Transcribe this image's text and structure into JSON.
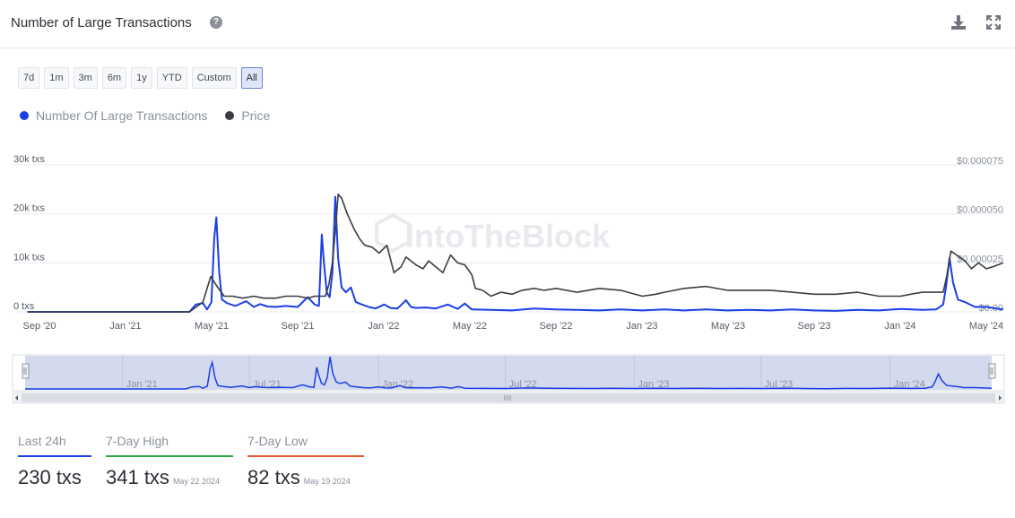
{
  "header": {
    "title": "Number of Large Transactions",
    "help_icon": "question-circle-icon",
    "download_icon": "download-icon",
    "expand_icon": "fullscreen-icon"
  },
  "ranges": [
    "7d",
    "1m",
    "3m",
    "6m",
    "1y",
    "YTD",
    "Custom",
    "All"
  ],
  "active_range": "All",
  "legend": [
    {
      "label": "Number Of Large Transactions",
      "color": "#1a3ee8"
    },
    {
      "label": "Price",
      "color": "#3a3d44"
    }
  ],
  "watermark": "IntoTheBlock",
  "chart_data": {
    "type": "line",
    "x_ticks": [
      "Sep '20",
      "Jan '21",
      "May '21",
      "Sep '21",
      "Jan '22",
      "May '22",
      "Sep '22",
      "Jan '23",
      "May '23",
      "Sep '23",
      "Jan '24",
      "May '24"
    ],
    "y_left_ticks": [
      "0 txs",
      "10k txs",
      "20k txs",
      "30k txs"
    ],
    "y_right_ticks": [
      "$0.00",
      "$0.000025",
      "$0.000050",
      "$0.000075"
    ],
    "y_left_range": [
      0,
      30000
    ],
    "y_right_range": [
      0,
      7.5e-05
    ],
    "navigator_ticks": [
      "Jan '21",
      "Jul '21",
      "Jan '22",
      "Jul '22",
      "Jan '23",
      "Jul '23",
      "Jan '24"
    ],
    "series": [
      {
        "name": "Number Of Large Transactions",
        "color": "#1a3ee8",
        "axis": "left",
        "x": [
          "2020-08-15",
          "2020-10-01",
          "2020-12-01",
          "2021-02-01",
          "2021-04-01",
          "2021-04-10",
          "2021-04-20",
          "2021-04-26",
          "2021-05-02",
          "2021-05-06",
          "2021-05-09",
          "2021-05-13",
          "2021-05-17",
          "2021-05-24",
          "2021-06-05",
          "2021-06-20",
          "2021-07-01",
          "2021-07-10",
          "2021-07-20",
          "2021-08-01",
          "2021-08-15",
          "2021-09-01",
          "2021-09-15",
          "2021-09-25",
          "2021-10-01",
          "2021-10-05",
          "2021-10-08",
          "2021-10-12",
          "2021-10-16",
          "2021-10-20",
          "2021-10-24",
          "2021-10-28",
          "2021-11-02",
          "2021-11-08",
          "2021-11-15",
          "2021-11-22",
          "2021-12-01",
          "2021-12-10",
          "2021-12-20",
          "2022-01-01",
          "2022-01-10",
          "2022-01-20",
          "2022-02-01",
          "2022-02-08",
          "2022-02-15",
          "2022-03-01",
          "2022-03-15",
          "2022-04-01",
          "2022-04-15",
          "2022-04-25",
          "2022-05-05",
          "2022-06-01",
          "2022-07-01",
          "2022-08-01",
          "2022-09-01",
          "2022-10-01",
          "2022-11-01",
          "2022-12-01",
          "2023-01-01",
          "2023-02-01",
          "2023-03-01",
          "2023-04-01",
          "2023-05-01",
          "2023-06-01",
          "2023-07-01",
          "2023-08-01",
          "2023-09-01",
          "2023-10-01",
          "2023-11-01",
          "2023-12-01",
          "2024-01-01",
          "2024-02-01",
          "2024-02-20",
          "2024-03-01",
          "2024-03-05",
          "2024-03-10",
          "2024-03-15",
          "2024-03-22",
          "2024-04-01",
          "2024-04-15",
          "2024-05-01",
          "2024-05-15",
          "2024-05-25"
        ],
        "y": [
          0,
          0,
          0,
          0,
          0,
          1500,
          1800,
          500,
          2000,
          15000,
          19300,
          8000,
          2500,
          1800,
          1200,
          2200,
          1000,
          1600,
          1100,
          1000,
          1200,
          1000,
          3000,
          1500,
          1200,
          15800,
          10000,
          4000,
          3000,
          8000,
          23500,
          11000,
          5000,
          4000,
          5000,
          2000,
          1500,
          1000,
          700,
          1500,
          800,
          700,
          2400,
          1000,
          800,
          900,
          700,
          1500,
          600,
          1700,
          500,
          400,
          300,
          700,
          500,
          400,
          300,
          500,
          300,
          500,
          300,
          500,
          300,
          400,
          300,
          500,
          300,
          200,
          400,
          300,
          600,
          400,
          500,
          1500,
          5000,
          11000,
          6000,
          2500,
          2000,
          1000,
          1000,
          700,
          500
        ]
      },
      {
        "name": "Price",
        "color": "#3a3d44",
        "axis": "right",
        "x": [
          "2020-08-15",
          "2021-04-01",
          "2021-04-20",
          "2021-05-01",
          "2021-05-10",
          "2021-05-20",
          "2021-06-01",
          "2021-06-15",
          "2021-07-01",
          "2021-07-15",
          "2021-08-01",
          "2021-08-15",
          "2021-09-01",
          "2021-09-15",
          "2021-09-25",
          "2021-10-01",
          "2021-10-10",
          "2021-10-15",
          "2021-10-20",
          "2021-10-25",
          "2021-10-28",
          "2021-11-02",
          "2021-11-10",
          "2021-11-20",
          "2021-11-28",
          "2021-12-05",
          "2021-12-15",
          "2021-12-25",
          "2022-01-05",
          "2022-01-15",
          "2022-01-25",
          "2022-02-01",
          "2022-02-08",
          "2022-02-15",
          "2022-02-25",
          "2022-03-05",
          "2022-03-15",
          "2022-03-25",
          "2022-04-05",
          "2022-04-15",
          "2022-04-25",
          "2022-05-05",
          "2022-05-10",
          "2022-05-20",
          "2022-06-01",
          "2022-06-15",
          "2022-07-01",
          "2022-07-15",
          "2022-08-01",
          "2022-08-15",
          "2022-09-01",
          "2022-10-01",
          "2022-11-01",
          "2022-12-01",
          "2023-01-01",
          "2023-01-20",
          "2023-02-01",
          "2023-03-01",
          "2023-04-01",
          "2023-05-01",
          "2023-06-01",
          "2023-07-01",
          "2023-08-01",
          "2023-09-01",
          "2023-10-01",
          "2023-11-01",
          "2023-12-01",
          "2024-01-01",
          "2024-01-15",
          "2024-02-01",
          "2024-02-20",
          "2024-03-01",
          "2024-03-06",
          "2024-03-12",
          "2024-03-20",
          "2024-04-01",
          "2024-04-10",
          "2024-04-20",
          "2024-05-01",
          "2024-05-10",
          "2024-05-25"
        ],
        "y": [
          0,
          0,
          5e-06,
          1.8e-05,
          1.3e-05,
          8e-06,
          8e-06,
          7e-06,
          8e-06,
          7e-06,
          7e-06,
          8e-06,
          8e-06,
          7e-06,
          8e-06,
          8e-06,
          8e-06,
          1.4e-05,
          2.5e-05,
          4.5e-05,
          6e-05,
          5.8e-05,
          5e-05,
          4.2e-05,
          3.7e-05,
          3.4e-05,
          3.3e-05,
          3e-05,
          3.4e-05,
          2e-05,
          2.3e-05,
          2.8e-05,
          2.6e-05,
          2.4e-05,
          2.2e-05,
          2.6e-05,
          2.3e-05,
          2e-05,
          2.9e-05,
          2.5e-05,
          2.4e-05,
          1.9e-05,
          1.2e-05,
          1.1e-05,
          8e-06,
          1e-05,
          9e-06,
          1.1e-05,
          1.2e-05,
          1.1e-05,
          1.2e-05,
          1e-05,
          1.2e-05,
          1.1e-05,
          8e-06,
          9e-06,
          1e-05,
          1.2e-05,
          1.3e-05,
          1.1e-05,
          1.1e-05,
          1.1e-05,
          1e-05,
          9e-06,
          9e-06,
          1e-05,
          8e-06,
          8e-06,
          9e-06,
          1e-05,
          1e-05,
          1e-05,
          1.8e-05,
          3.1e-05,
          2.9e-05,
          2.6e-05,
          2.2e-05,
          2.5e-05,
          2.2e-05,
          2.3e-05,
          2.5e-05
        ]
      }
    ]
  },
  "stats": [
    {
      "label": "Last 24h",
      "value": "230 txs",
      "date": "",
      "color": "#1a3ee8"
    },
    {
      "label": "7-Day High",
      "value": "341 txs",
      "date": "May 22 2024",
      "color": "#2ea84a"
    },
    {
      "label": "7-Day Low",
      "value": "82 txs",
      "date": "May 19 2024",
      "color": "#e4572e"
    }
  ]
}
